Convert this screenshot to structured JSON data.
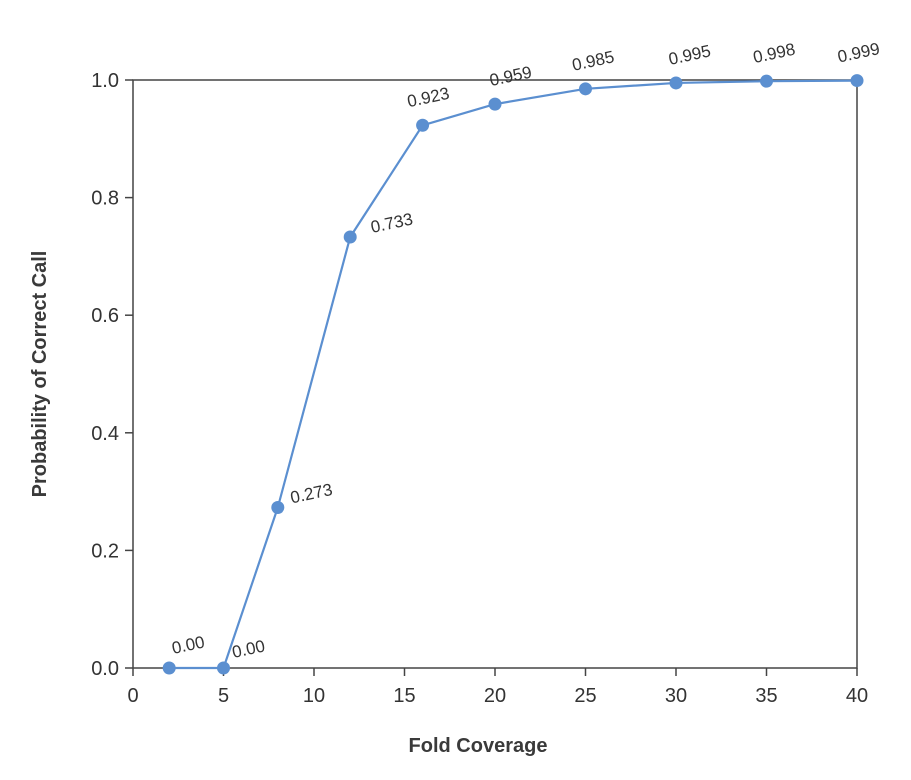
{
  "chart_data": {
    "type": "line",
    "xlabel": "Fold Coverage",
    "ylabel": "Probability of Correct Call",
    "xlim": [
      0,
      40
    ],
    "ylim": [
      0,
      1.0
    ],
    "x_ticks": [
      0,
      5,
      10,
      15,
      20,
      25,
      30,
      35,
      40
    ],
    "y_ticks": [
      0.0,
      0.2,
      0.4,
      0.6,
      0.8,
      1.0
    ],
    "x_tick_labels": [
      "0",
      "5",
      "10",
      "15",
      "20",
      "25",
      "30",
      "35",
      "40"
    ],
    "y_tick_labels": [
      "0.0",
      "0.2",
      "0.4",
      "0.6",
      "0.8",
      "1.0"
    ],
    "grid": false,
    "series": [
      {
        "color": "#5b8fd0",
        "points": [
          {
            "x": 2,
            "y": 0.0,
            "label": "0.00"
          },
          {
            "x": 5,
            "y": 0.0,
            "label": "0.00"
          },
          {
            "x": 8,
            "y": 0.273,
            "label": "0.273"
          },
          {
            "x": 12,
            "y": 0.733,
            "label": "0.733"
          },
          {
            "x": 16,
            "y": 0.923,
            "label": "0.923"
          },
          {
            "x": 20,
            "y": 0.959,
            "label": "0.959"
          },
          {
            "x": 25,
            "y": 0.985,
            "label": "0.985"
          },
          {
            "x": 30,
            "y": 0.995,
            "label": "0.995"
          },
          {
            "x": 35,
            "y": 0.998,
            "label": "0.998"
          },
          {
            "x": 40,
            "y": 0.999,
            "label": "0.999"
          }
        ]
      }
    ]
  }
}
